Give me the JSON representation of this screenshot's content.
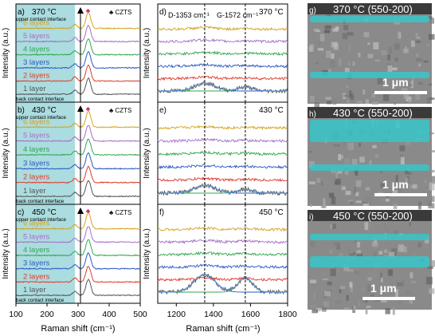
{
  "chart_data": [
    {
      "type": "line",
      "panels": [
        {
          "label": "a)",
          "temp": "370 °C",
          "peak_x": 333
        },
        {
          "label": "b)",
          "temp": "430 °C",
          "peak_x": 333
        },
        {
          "label": "c)",
          "temp": "450 °C",
          "peak_x": 333
        }
      ],
      "series": [
        {
          "name": "1 layer",
          "color": "#555555"
        },
        {
          "name": "2 layers",
          "color": "#e23b2e"
        },
        {
          "name": "3 layers",
          "color": "#2b59c3"
        },
        {
          "name": "4 layers",
          "color": "#2fa84f"
        },
        {
          "name": "5 layers",
          "color": "#a46fc9"
        },
        {
          "name": "6 layers",
          "color": "#d6a21a"
        }
      ],
      "upper_label": "upper contact interface",
      "back_label": "back contact interface",
      "legend": "CZTS",
      "shade_range": [
        100,
        290
      ],
      "xlim": [
        100,
        500
      ],
      "xticks": [
        "100",
        "200",
        "300",
        "400",
        "500"
      ],
      "xlabel": "Raman shift (cm⁻¹)",
      "ylabel": "Intensity (a.u.)",
      "colors": {
        "shade": "#8fd0d4",
        "marker": "#c2185b"
      }
    },
    {
      "type": "line",
      "panels": [
        {
          "label": "d)",
          "temp": "370 °C",
          "d_band": 1353,
          "g_band": 1572
        },
        {
          "label": "e)",
          "temp": "430 °C",
          "d_band": 1353,
          "g_band": 1572
        },
        {
          "label": "f)",
          "temp": "450 °C",
          "d_band": 1353,
          "g_band": 1572
        }
      ],
      "band_labels": {
        "d": "D-1353 cm⁻¹",
        "g": "G-1572 cm⁻¹"
      },
      "xlim": [
        1100,
        1800
      ],
      "xticks": [
        "1200",
        "1400",
        "1600",
        "1800"
      ],
      "xlabel": "Raman shift (cm⁻¹)",
      "ylabel": "Intensity (a.u.)"
    }
  ],
  "sem": [
    {
      "label": "g)",
      "caption": "370 °C (550-200)",
      "scale": "1 μm"
    },
    {
      "label": "h)",
      "caption": "430 °C (550-200)",
      "scale": "1 μm"
    },
    {
      "label": "i)",
      "caption": "450 °C (550-200)",
      "scale": "1 μm"
    }
  ]
}
